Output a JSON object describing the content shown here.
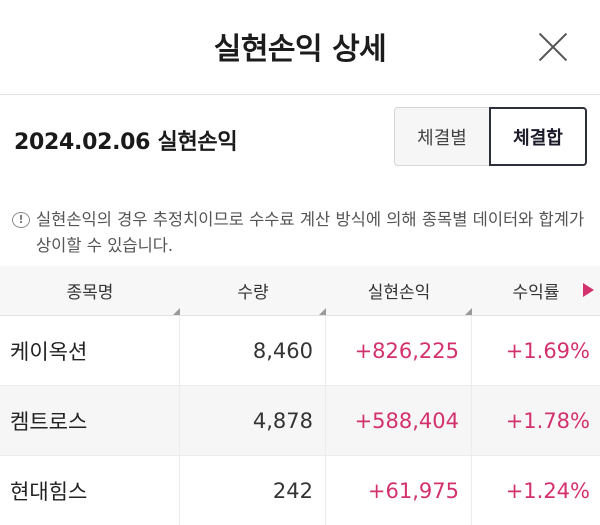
{
  "header": {
    "title": "실현손익 상세",
    "close_icon": "close-icon"
  },
  "summary": {
    "title": "2024.02.06 실현손익",
    "segments": [
      {
        "label": "체결별",
        "selected": false
      },
      {
        "label": "체결합",
        "selected": true
      }
    ]
  },
  "notice": {
    "icon": "info-icon",
    "icon_glyph": "!",
    "text": "실현손익의 경우 추정치이므로 수수료 계산 방식에 의해 종목별 데이터와 합계가 상이할 수 있습니다."
  },
  "table": {
    "columns": [
      "종목명",
      "수량",
      "실현손익",
      "수익률"
    ],
    "rows": [
      {
        "name": "케이옥션",
        "qty": "8,460",
        "pnl": "+826,225",
        "rate": "+1.69%"
      },
      {
        "name": "켐트로스",
        "qty": "4,878",
        "pnl": "+588,404",
        "rate": "+1.78%"
      },
      {
        "name": "현대힘스",
        "qty": "242",
        "pnl": "+61,975",
        "rate": "+1.24%"
      }
    ]
  },
  "colors": {
    "positive": "#d3316e",
    "selected_border": "#2d2f3a"
  }
}
